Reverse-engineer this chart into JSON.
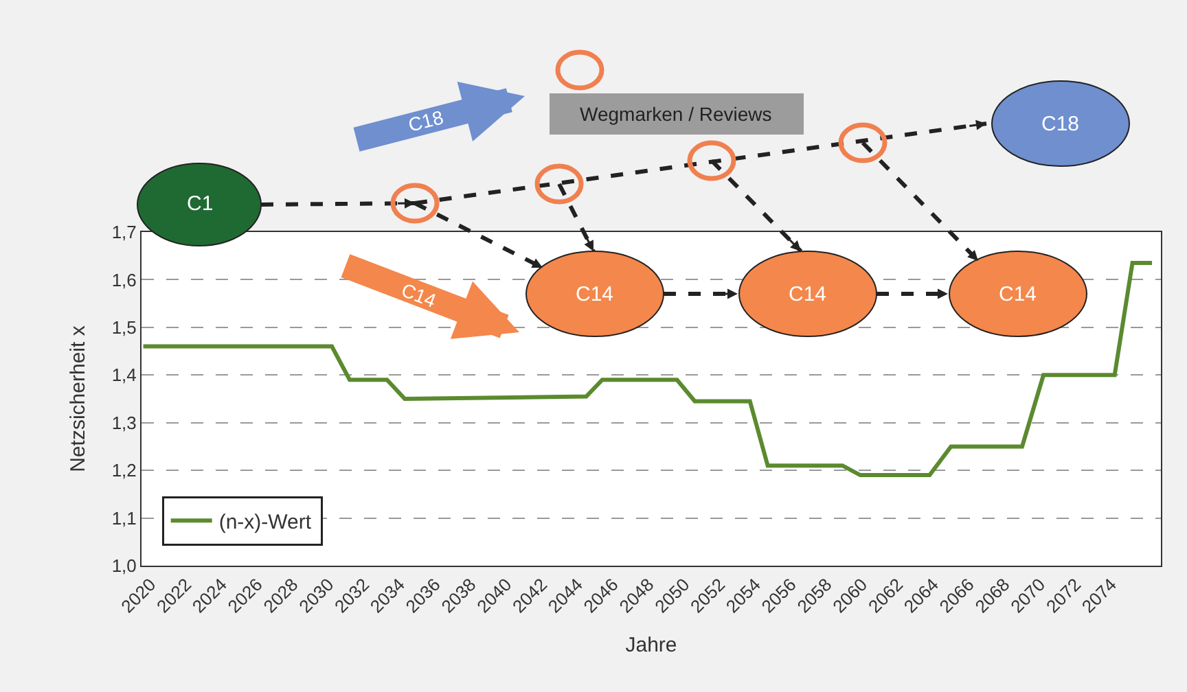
{
  "chart_data": {
    "type": "line",
    "xlabel": "Jahre",
    "ylabel": "Netzsicherheit x",
    "x": [
      2019.6,
      2030.2,
      2031.2,
      2033.3,
      2034.3,
      2044.5,
      2045.4,
      2049.6,
      2050.6,
      2053.7,
      2054.7,
      2058.9,
      2059.9,
      2063.8,
      2065.0,
      2069.0,
      2070.2,
      2074.2,
      2075.2,
      2076.3
    ],
    "series": [
      {
        "name": "(n-x)-Wert",
        "color": "#5b8a2f",
        "values": [
          1.46,
          1.46,
          1.39,
          1.39,
          1.35,
          1.355,
          1.39,
          1.39,
          1.345,
          1.345,
          1.21,
          1.21,
          1.19,
          1.19,
          1.25,
          1.25,
          1.4,
          1.4,
          1.635,
          1.635
        ]
      }
    ],
    "xlim": [
      2019.5,
      2076.8
    ],
    "xticks": [
      2020,
      2022,
      2024,
      2026,
      2028,
      2030,
      2032,
      2034,
      2036,
      2038,
      2040,
      2042,
      2044,
      2046,
      2048,
      2050,
      2052,
      2054,
      2056,
      2058,
      2060,
      2062,
      2064,
      2066,
      2068,
      2070,
      2072,
      2074
    ],
    "ylim": [
      1.0,
      1.7
    ],
    "yticks": [
      {
        "value": 1.0,
        "label": "1,0"
      },
      {
        "value": 1.1,
        "label": "1,1"
      },
      {
        "value": 1.2,
        "label": "1,2"
      },
      {
        "value": 1.3,
        "label": "1,3"
      },
      {
        "value": 1.4,
        "label": "1,4"
      },
      {
        "value": 1.5,
        "label": "1,5"
      },
      {
        "value": 1.6,
        "label": "1,6"
      },
      {
        "value": 1.7,
        "label": "1,7"
      }
    ],
    "grid": "y",
    "legend": "bottom left",
    "line_style": "solid",
    "marker": "none",
    "annotations": [
      "C1",
      "C14",
      "C14",
      "C14",
      "C18",
      "Wegmarken / Reviews",
      "C18",
      "C14"
    ]
  }
}
